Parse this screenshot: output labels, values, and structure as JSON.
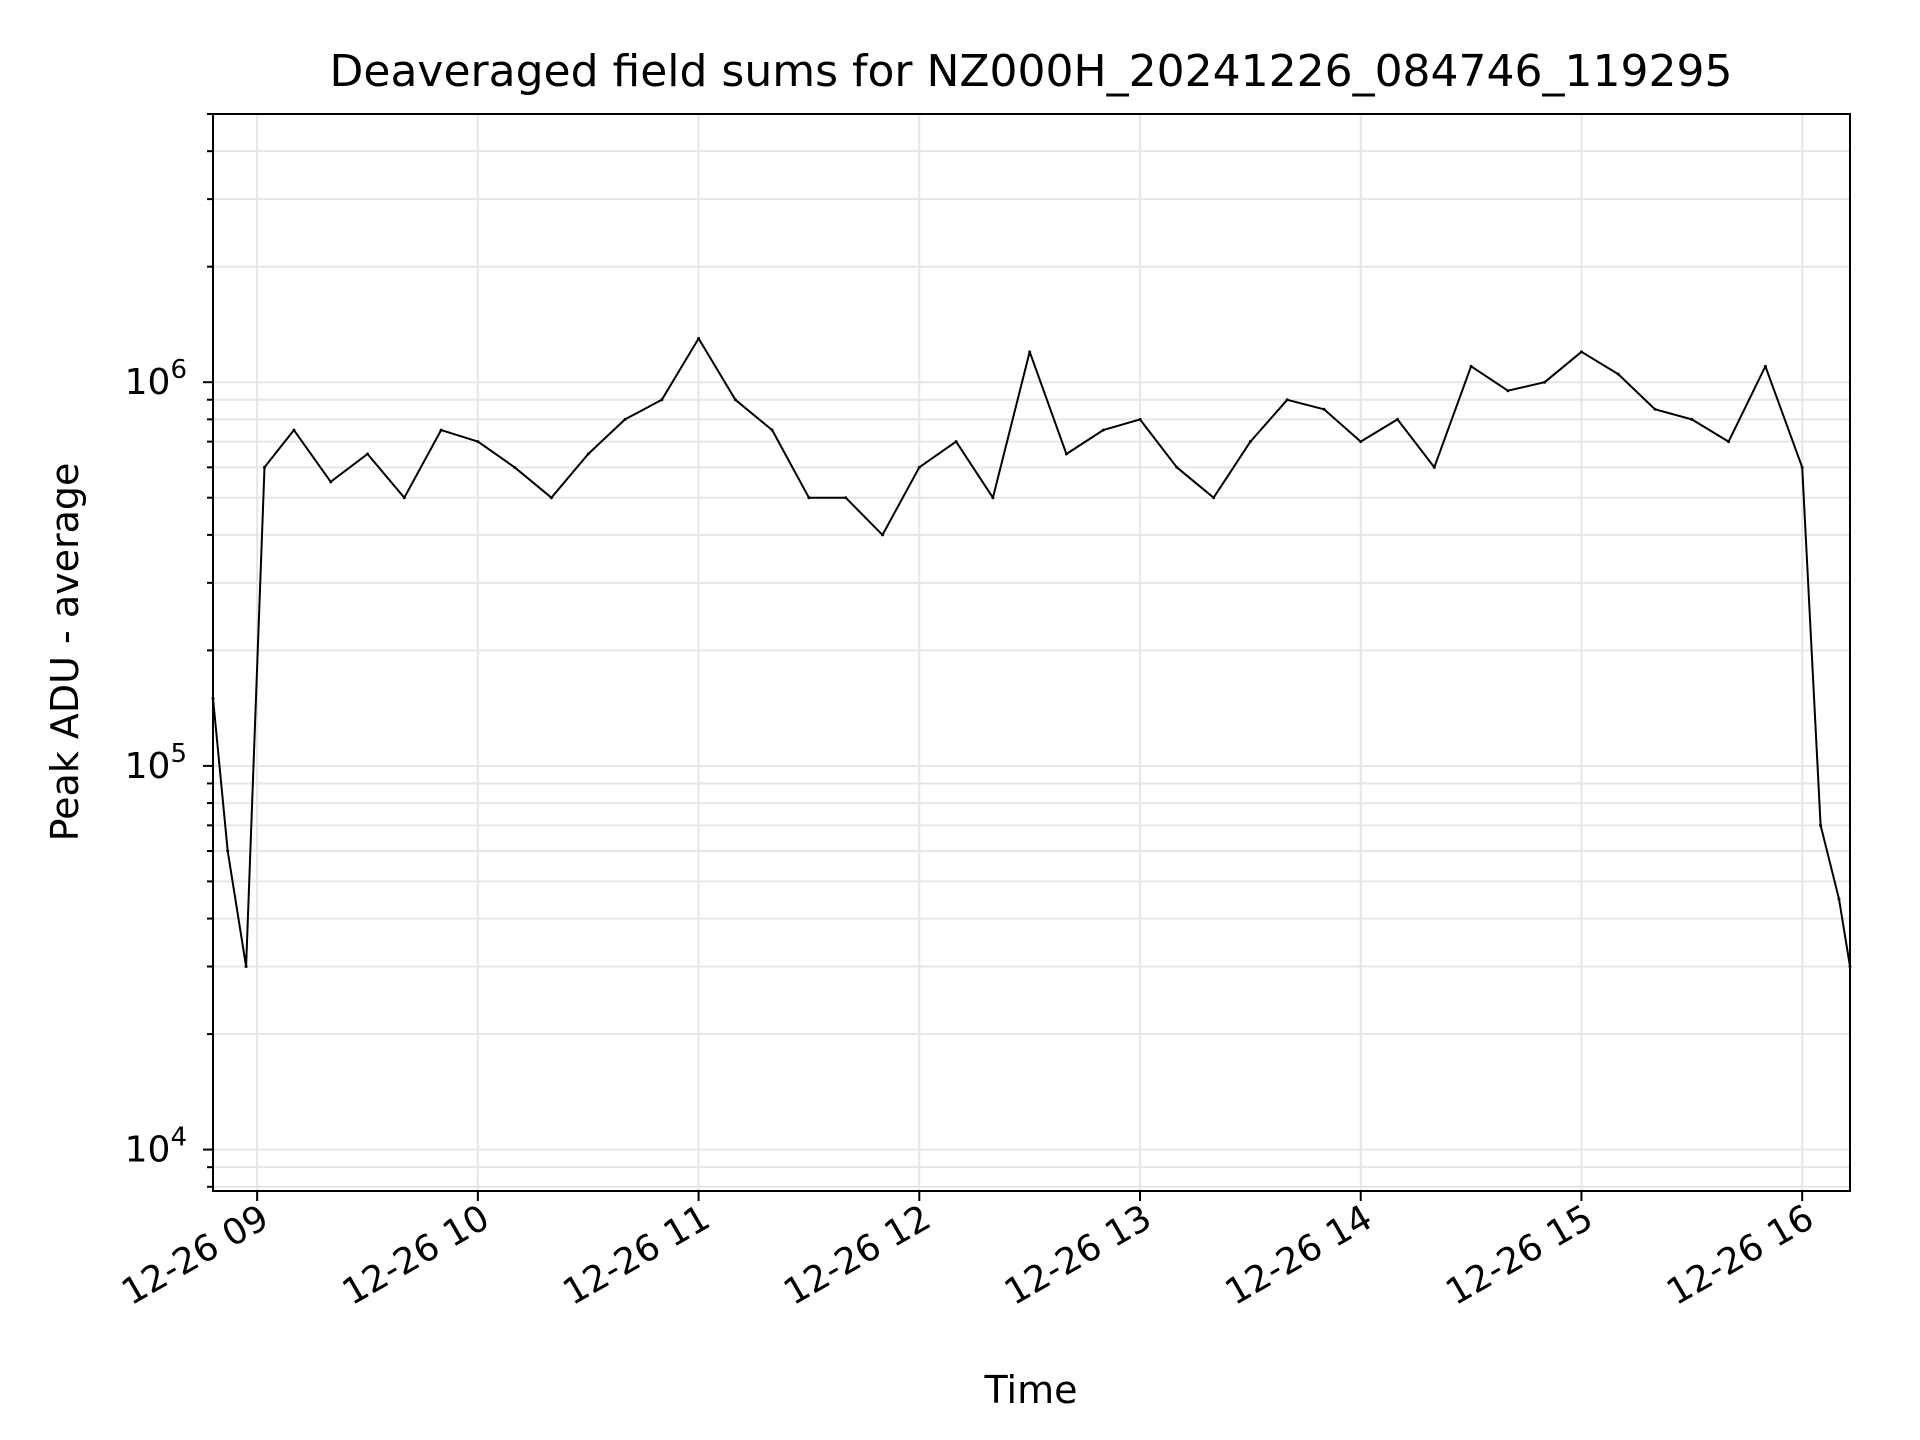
{
  "chart_data": {
    "type": "line",
    "title": "Deaveraged field sums for NZ000H_20241226_084746_119295",
    "xlabel": "Time",
    "ylabel": "Peak ADU - average",
    "yscale": "log",
    "ylim": [
      7800,
      5000000
    ],
    "xlim": [
      "12-26 08:48",
      "12-26 16:13"
    ],
    "grid": true,
    "line_color": "#000000",
    "x_ticks": [
      "12-26 09",
      "12-26 10",
      "12-26 11",
      "12-26 12",
      "12-26 13",
      "12-26 14",
      "12-26 15",
      "12-26 16"
    ],
    "y_ticks": [
      {
        "base": "10",
        "exp": "4",
        "value": 10000
      },
      {
        "base": "10",
        "exp": "5",
        "value": 100000
      },
      {
        "base": "10",
        "exp": "6",
        "value": 1000000
      }
    ],
    "series": [
      {
        "x": [
          "12-26 08:48",
          "12-26 08:52",
          "12-26 08:57",
          "12-26 09:02",
          "12-26 09:10",
          "12-26 09:20",
          "12-26 09:30",
          "12-26 09:40",
          "12-26 09:50",
          "12-26 10:00",
          "12-26 10:10",
          "12-26 10:20",
          "12-26 10:30",
          "12-26 10:40",
          "12-26 10:50",
          "12-26 11:00",
          "12-26 11:10",
          "12-26 11:20",
          "12-26 11:30",
          "12-26 11:40",
          "12-26 11:50",
          "12-26 12:00",
          "12-26 12:10",
          "12-26 12:20",
          "12-26 12:30",
          "12-26 12:40",
          "12-26 12:50",
          "12-26 13:00",
          "12-26 13:10",
          "12-26 13:20",
          "12-26 13:30",
          "12-26 13:40",
          "12-26 13:50",
          "12-26 14:00",
          "12-26 14:10",
          "12-26 14:20",
          "12-26 14:30",
          "12-26 14:40",
          "12-26 14:50",
          "12-26 15:00",
          "12-26 15:10",
          "12-26 15:20",
          "12-26 15:30",
          "12-26 15:40",
          "12-26 15:50",
          "12-26 16:00",
          "12-26 16:05",
          "12-26 16:10",
          "12-26 16:13"
        ],
        "y": [
          150000,
          60000,
          30000,
          600000,
          750000,
          550000,
          650000,
          500000,
          750000,
          700000,
          600000,
          500000,
          650000,
          800000,
          900000,
          1300000,
          900000,
          750000,
          500000,
          500000,
          400000,
          600000,
          700000,
          500000,
          1200000,
          650000,
          750000,
          800000,
          600000,
          500000,
          700000,
          900000,
          850000,
          700000,
          800000,
          600000,
          1100000,
          950000,
          1000000,
          1200000,
          1050000,
          850000,
          800000,
          700000,
          1100000,
          600000,
          70000,
          45000,
          30000
        ]
      }
    ]
  }
}
